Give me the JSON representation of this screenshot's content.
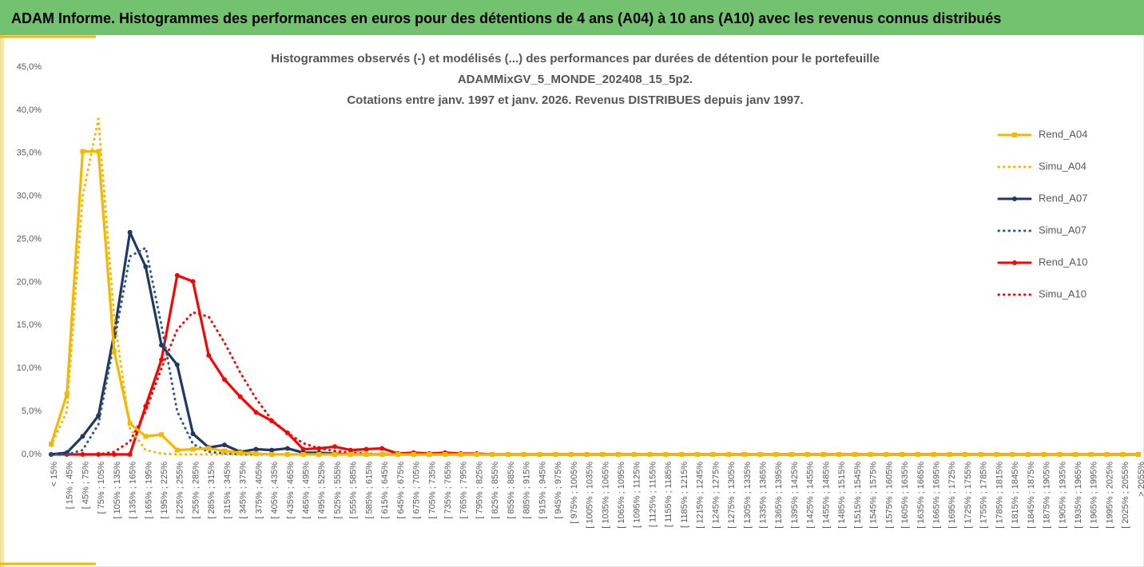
{
  "header": {
    "title": "ADAM Informe. Histogrammes des performances en euros pour des détentions de 4 ans (A04) à 10 ans (A10) avec les revenus connus distribués"
  },
  "chart_data": {
    "type": "line",
    "title": [
      "Histogrammes observés (-) et modélisés (...) des performances par durées de détention pour le portefeuille",
      "ADAMMixGV_5_MONDE_202408_15_5p2.",
      "Cotations entre janv. 1997 et janv. 2026. Revenus DISTRIBUES depuis janv 1997."
    ],
    "categories": [
      "< 15%",
      "[ 15% ; 45%",
      "[ 45% ; 75%",
      "[ 75% ; 105%",
      "[ 105% ; 135%",
      "[ 135% ; 165%",
      "[ 165% ; 195%",
      "[ 195% ; 225%",
      "[ 225% ; 255%",
      "[ 255% ; 285%",
      "[ 285% ; 315%",
      "[ 315% ; 345%",
      "[ 345% ; 375%",
      "[ 375% ; 405%",
      "[ 405% ; 435%",
      "[ 435% ; 465%",
      "[ 465% ; 495%",
      "[ 495% ; 525%",
      "[ 525% ; 555%",
      "[ 555% ; 585%",
      "[ 585% ; 615%",
      "[ 615% ; 645%",
      "[ 645% ; 675%",
      "[ 675% ; 705%",
      "[ 705% ; 735%",
      "[ 735% ; 765%",
      "[ 765% ; 795%",
      "[ 795% ; 825%",
      "[ 825% ; 855%",
      "[ 855% ; 885%",
      "[ 885% ; 915%",
      "[ 915% ; 945%",
      "[ 945% ; 975%",
      "[ 975% ; 1005%",
      "[ 1005% ; 1035%",
      "[ 1035% ; 1065%",
      "[ 1065% ; 1095%",
      "[ 1095% ; 1125%",
      "[ 1125% ; 1155%",
      "[ 1155% ; 1185%",
      "[ 1185% ; 1215%",
      "[ 1215% ; 1245%",
      "[ 1245% ; 1275%",
      "[ 1275% ; 1305%",
      "[ 1305% ; 1335%",
      "[ 1335% ; 1365%",
      "[ 1365% ; 1395%",
      "[ 1395% ; 1425%",
      "[ 1425% ; 1455%",
      "[ 1455% ; 1485%",
      "[ 1485% ; 1515%",
      "[ 1515% ; 1545%",
      "[ 1545% ; 1575%",
      "[ 1575% ; 1605%",
      "[ 1605% ; 1635%",
      "[ 1635% ; 1665%",
      "[ 1665% ; 1695%",
      "[ 1695% ; 1725%",
      "[ 1725% ; 1755%",
      "[ 1755% ; 1785%",
      "[ 1785% ; 1815%",
      "[ 1815% ; 1845%",
      "[ 1845% ; 1875%",
      "[ 1875% ; 1905%",
      "[ 1905% ; 1935%",
      "[ 1935% ; 1965%",
      "[ 1965% ; 1995%",
      "[ 1995% ; 2025%",
      "[ 2025% ; 2055%",
      "> 2055%"
    ],
    "series": [
      {
        "name": "Rend_A04",
        "color": "#f5b800",
        "line_style": "solid",
        "marker": "square",
        "values": [
          1.2,
          7.0,
          35.2,
          35.2,
          12.0,
          3.6,
          2.1,
          2.3,
          0.5,
          0.6,
          0.7,
          0.4,
          0.2,
          0.1,
          0,
          0,
          0,
          0,
          0,
          0,
          0,
          0,
          0,
          0,
          0,
          0,
          0,
          0,
          0,
          0,
          0,
          0,
          0,
          0,
          0,
          0,
          0,
          0,
          0,
          0,
          0,
          0,
          0,
          0,
          0,
          0,
          0,
          0,
          0,
          0,
          0,
          0,
          0,
          0,
          0,
          0,
          0,
          0,
          0,
          0,
          0,
          0,
          0,
          0,
          0,
          0,
          0,
          0,
          0,
          0
        ]
      },
      {
        "name": "Simu_A04",
        "color": "#f5b800",
        "line_style": "dotted",
        "marker": "none",
        "values": [
          1.0,
          5.0,
          30.0,
          39.0,
          16.0,
          3.0,
          0.5,
          0.1,
          0,
          0,
          0,
          0,
          0,
          0,
          0,
          0,
          0,
          0,
          0,
          0,
          0,
          0,
          0,
          0,
          0,
          0,
          0,
          0,
          0,
          0,
          0,
          0,
          0,
          0,
          0,
          0,
          0,
          0,
          0,
          0,
          0,
          0,
          0,
          0,
          0,
          0,
          0,
          0,
          0,
          0,
          0,
          0,
          0,
          0,
          0,
          0,
          0,
          0,
          0,
          0,
          0,
          0,
          0,
          0,
          0,
          0,
          0,
          0,
          0,
          0
        ]
      },
      {
        "name": "Rend_A07",
        "color": "#1f3864",
        "line_style": "solid",
        "marker": "circle",
        "values": [
          0,
          0.2,
          2.1,
          4.5,
          14.0,
          25.8,
          21.8,
          12.7,
          10.4,
          2.4,
          0.8,
          1.1,
          0.3,
          0.6,
          0.5,
          0.7,
          0.2,
          0.2,
          0.1,
          0,
          0,
          0,
          0,
          0,
          0,
          0,
          0,
          0,
          0,
          0,
          0,
          0,
          0,
          0,
          0,
          0,
          0,
          0,
          0,
          0,
          0,
          0,
          0,
          0,
          0,
          0,
          0,
          0,
          0,
          0,
          0,
          0,
          0,
          0,
          0,
          0,
          0,
          0,
          0,
          0,
          0,
          0,
          0,
          0,
          0,
          0,
          0,
          0,
          0,
          0
        ]
      },
      {
        "name": "Simu_A07",
        "color": "#2e5a87",
        "line_style": "dotted",
        "marker": "none",
        "values": [
          0,
          0,
          0.5,
          3.5,
          13.0,
          23.0,
          24.0,
          15.0,
          5.0,
          1.2,
          0.3,
          0.1,
          0,
          0,
          0,
          0,
          0,
          0,
          0,
          0,
          0,
          0,
          0,
          0,
          0,
          0,
          0,
          0,
          0,
          0,
          0,
          0,
          0,
          0,
          0,
          0,
          0,
          0,
          0,
          0,
          0,
          0,
          0,
          0,
          0,
          0,
          0,
          0,
          0,
          0,
          0,
          0,
          0,
          0,
          0,
          0,
          0,
          0,
          0,
          0,
          0,
          0,
          0,
          0,
          0,
          0,
          0,
          0,
          0,
          0
        ]
      },
      {
        "name": "Rend_A10",
        "color": "#ff0000",
        "line_style": "solid",
        "marker": "circle",
        "values": [
          0,
          0,
          0,
          0,
          0,
          0,
          5.6,
          11.0,
          20.8,
          20.1,
          11.5,
          8.7,
          6.7,
          4.9,
          3.9,
          2.5,
          0.6,
          0.7,
          0.9,
          0.5,
          0.6,
          0.7,
          0.1,
          0.2,
          0.1,
          0.2,
          0.1,
          0.1,
          0,
          0,
          0,
          0,
          0,
          0,
          0,
          0,
          0,
          0,
          0,
          0,
          0,
          0,
          0,
          0,
          0,
          0,
          0,
          0,
          0,
          0,
          0,
          0,
          0,
          0,
          0,
          0,
          0,
          0,
          0,
          0,
          0,
          0,
          0,
          0,
          0,
          0,
          0,
          0,
          0,
          0
        ]
      },
      {
        "name": "Simu_A10",
        "color": "#ff0000",
        "line_style": "dotted",
        "marker": "none",
        "values": [
          0,
          0,
          0,
          0,
          0.3,
          1.5,
          5.0,
          10.0,
          14.5,
          16.5,
          16.0,
          13.0,
          9.5,
          6.5,
          4.0,
          2.5,
          1.3,
          0.7,
          0.4,
          0.2,
          0.1,
          0,
          0,
          0,
          0,
          0,
          0,
          0,
          0,
          0,
          0,
          0,
          0,
          0,
          0,
          0,
          0,
          0,
          0,
          0,
          0,
          0,
          0,
          0,
          0,
          0,
          0,
          0,
          0,
          0,
          0,
          0,
          0,
          0,
          0,
          0,
          0,
          0,
          0,
          0,
          0,
          0,
          0,
          0,
          0,
          0,
          0,
          0,
          0,
          0
        ]
      }
    ],
    "ylim": [
      0,
      45
    ],
    "yticks": [
      {
        "value": 0,
        "label": "0,0%"
      },
      {
        "value": 5,
        "label": "5,0%"
      },
      {
        "value": 10,
        "label": "10,0%"
      },
      {
        "value": 15,
        "label": "15,0%"
      },
      {
        "value": 20,
        "label": "20,0%"
      },
      {
        "value": 25,
        "label": "25,0%"
      },
      {
        "value": 30,
        "label": "30,0%"
      },
      {
        "value": 35,
        "label": "35,0%"
      },
      {
        "value": 40,
        "label": "40,0%"
      },
      {
        "value": 45,
        "label": "45,0%"
      }
    ],
    "grid": false,
    "legend": "right"
  }
}
